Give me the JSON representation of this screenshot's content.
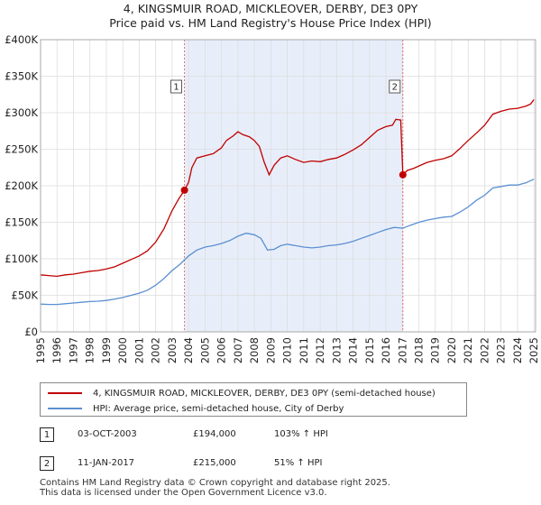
{
  "title_line1": "4, KINGSMUIR ROAD, MICKLEOVER, DERBY, DE3 0PY",
  "title_line2": "Price paid vs. HM Land Registry's House Price Index (HPI)",
  "colors": {
    "property": "#c00000",
    "hpi": "#5b8fd1",
    "shade": "#e8eef9",
    "vline": "#e06060",
    "grid": "#dddddd"
  },
  "chart_data": {
    "type": "line",
    "x_range": [
      1995.0,
      2025.1
    ],
    "y_range": [
      0,
      400000
    ],
    "y_ticks": [
      {
        "v": 0,
        "label": "£0"
      },
      {
        "v": 50000,
        "label": "£50K"
      },
      {
        "v": 100000,
        "label": "£100K"
      },
      {
        "v": 150000,
        "label": "£150K"
      },
      {
        "v": 200000,
        "label": "£200K"
      },
      {
        "v": 250000,
        "label": "£250K"
      },
      {
        "v": 300000,
        "label": "£300K"
      },
      {
        "v": 350000,
        "label": "£350K"
      },
      {
        "v": 400000,
        "label": "£400K"
      }
    ],
    "x_ticks": [
      "1995",
      "1996",
      "1997",
      "1998",
      "1999",
      "2000",
      "2001",
      "2002",
      "2003",
      "2004",
      "2005",
      "2006",
      "2007",
      "2008",
      "2009",
      "2010",
      "2011",
      "2012",
      "2013",
      "2014",
      "2015",
      "2016",
      "2017",
      "2018",
      "2019",
      "2020",
      "2021",
      "2022",
      "2023",
      "2024",
      "2025"
    ],
    "shaded_span": [
      2003.75,
      2017.03
    ],
    "series": [
      {
        "name": "4, KINGSMUIR ROAD, MICKLEOVER, DERBY, DE3 0PY (semi-detached house)",
        "color": "#c00000",
        "points": [
          [
            1995.0,
            78000
          ],
          [
            1995.5,
            77000
          ],
          [
            1996.0,
            76000
          ],
          [
            1996.5,
            78000
          ],
          [
            1997.0,
            79000
          ],
          [
            1997.5,
            81000
          ],
          [
            1998.0,
            83000
          ],
          [
            1998.5,
            84000
          ],
          [
            1999.0,
            86000
          ],
          [
            1999.5,
            89000
          ],
          [
            2000.0,
            94000
          ],
          [
            2000.5,
            99000
          ],
          [
            2001.0,
            104000
          ],
          [
            2001.5,
            111000
          ],
          [
            2002.0,
            123000
          ],
          [
            2002.5,
            141000
          ],
          [
            2003.0,
            166000
          ],
          [
            2003.4,
            182000
          ],
          [
            2003.75,
            194000
          ],
          [
            2004.0,
            205000
          ],
          [
            2004.2,
            225000
          ],
          [
            2004.5,
            238000
          ],
          [
            2005.0,
            241000
          ],
          [
            2005.5,
            244000
          ],
          [
            2006.0,
            252000
          ],
          [
            2006.3,
            262000
          ],
          [
            2006.7,
            268000
          ],
          [
            2007.0,
            274000
          ],
          [
            2007.3,
            270000
          ],
          [
            2007.7,
            267000
          ],
          [
            2008.0,
            262000
          ],
          [
            2008.3,
            254000
          ],
          [
            2008.6,
            232000
          ],
          [
            2008.9,
            215000
          ],
          [
            2009.2,
            228000
          ],
          [
            2009.6,
            238000
          ],
          [
            2010.0,
            241000
          ],
          [
            2010.5,
            236000
          ],
          [
            2011.0,
            232000
          ],
          [
            2011.5,
            234000
          ],
          [
            2012.0,
            233000
          ],
          [
            2012.5,
            236000
          ],
          [
            2013.0,
            238000
          ],
          [
            2013.5,
            243000
          ],
          [
            2014.0,
            249000
          ],
          [
            2014.5,
            256000
          ],
          [
            2015.0,
            266000
          ],
          [
            2015.5,
            276000
          ],
          [
            2016.0,
            281000
          ],
          [
            2016.4,
            283000
          ],
          [
            2016.6,
            291000
          ],
          [
            2016.9,
            290000
          ],
          [
            2017.03,
            215000
          ],
          [
            2017.3,
            221000
          ],
          [
            2017.7,
            224000
          ],
          [
            2018.0,
            227000
          ],
          [
            2018.5,
            232000
          ],
          [
            2019.0,
            235000
          ],
          [
            2019.5,
            237000
          ],
          [
            2020.0,
            241000
          ],
          [
            2020.5,
            251000
          ],
          [
            2021.0,
            262000
          ],
          [
            2021.5,
            272000
          ],
          [
            2022.0,
            283000
          ],
          [
            2022.5,
            298000
          ],
          [
            2023.0,
            302000
          ],
          [
            2023.5,
            305000
          ],
          [
            2024.0,
            306000
          ],
          [
            2024.5,
            309000
          ],
          [
            2024.8,
            312000
          ],
          [
            2025.0,
            318000
          ]
        ]
      },
      {
        "name": "HPI: Average price, semi-detached house, City of Derby",
        "color": "#5b8fd1",
        "points": [
          [
            1995.0,
            38000
          ],
          [
            1995.5,
            37500
          ],
          [
            1996.0,
            37500
          ],
          [
            1996.5,
            38500
          ],
          [
            1997.0,
            39500
          ],
          [
            1997.5,
            40500
          ],
          [
            1998.0,
            41500
          ],
          [
            1998.5,
            42000
          ],
          [
            1999.0,
            43000
          ],
          [
            1999.5,
            45000
          ],
          [
            2000.0,
            47000
          ],
          [
            2000.5,
            50000
          ],
          [
            2001.0,
            53000
          ],
          [
            2001.5,
            57000
          ],
          [
            2002.0,
            64000
          ],
          [
            2002.5,
            73000
          ],
          [
            2003.0,
            84000
          ],
          [
            2003.5,
            93000
          ],
          [
            2004.0,
            104000
          ],
          [
            2004.5,
            112000
          ],
          [
            2005.0,
            116000
          ],
          [
            2005.5,
            118000
          ],
          [
            2006.0,
            121000
          ],
          [
            2006.5,
            125000
          ],
          [
            2007.0,
            131000
          ],
          [
            2007.5,
            135000
          ],
          [
            2008.0,
            133000
          ],
          [
            2008.4,
            128000
          ],
          [
            2008.8,
            112000
          ],
          [
            2009.2,
            113000
          ],
          [
            2009.6,
            118000
          ],
          [
            2010.0,
            120000
          ],
          [
            2010.5,
            118000
          ],
          [
            2011.0,
            116000
          ],
          [
            2011.5,
            115000
          ],
          [
            2012.0,
            116000
          ],
          [
            2012.5,
            118000
          ],
          [
            2013.0,
            119000
          ],
          [
            2013.5,
            121000
          ],
          [
            2014.0,
            124000
          ],
          [
            2014.5,
            128000
          ],
          [
            2015.0,
            132000
          ],
          [
            2015.5,
            136000
          ],
          [
            2016.0,
            140000
          ],
          [
            2016.5,
            143000
          ],
          [
            2017.03,
            142000
          ],
          [
            2017.5,
            146000
          ],
          [
            2018.0,
            150000
          ],
          [
            2018.5,
            153000
          ],
          [
            2019.0,
            155000
          ],
          [
            2019.5,
            157000
          ],
          [
            2020.0,
            158000
          ],
          [
            2020.5,
            164000
          ],
          [
            2021.0,
            171000
          ],
          [
            2021.5,
            180000
          ],
          [
            2022.0,
            187000
          ],
          [
            2022.5,
            197000
          ],
          [
            2023.0,
            199000
          ],
          [
            2023.5,
            201000
          ],
          [
            2024.0,
            201000
          ],
          [
            2024.5,
            204000
          ],
          [
            2024.8,
            207000
          ],
          [
            2025.0,
            209000
          ]
        ]
      }
    ],
    "events": [
      {
        "label": "1",
        "x": 2003.75,
        "y": 194000
      },
      {
        "label": "2",
        "x": 2017.03,
        "y": 215000
      }
    ]
  },
  "legend": {
    "property_label": "4, KINGSMUIR ROAD, MICKLEOVER, DERBY, DE3 0PY (semi-detached house)",
    "hpi_label": "HPI: Average price, semi-detached house, City of Derby"
  },
  "events_table": [
    {
      "num": "1",
      "date": "03-OCT-2003",
      "price": "£194,000",
      "hpi": "103% ↑ HPI"
    },
    {
      "num": "2",
      "date": "11-JAN-2017",
      "price": "£215,000",
      "hpi": "51% ↑ HPI"
    }
  ],
  "footer": {
    "line1": "Contains HM Land Registry data © Crown copyright and database right 2025.",
    "line2": "This data is licensed under the Open Government Licence v3.0."
  }
}
